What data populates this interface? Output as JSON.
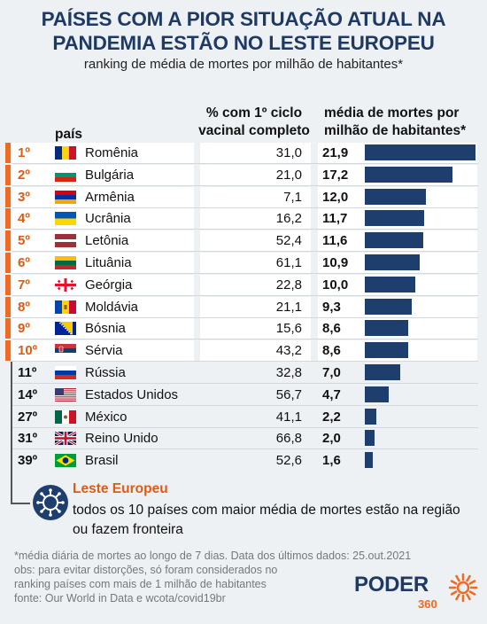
{
  "header": {
    "title_line1": "PAÍSES COM A PIOR SITUAÇÃO ATUAL NA",
    "title_line2": "PANDEMIA ESTÃO NO LESTE EUROPEU",
    "subtitle": "ranking de média de mortes por milhão de habitantes*"
  },
  "columns": {
    "country": "país",
    "pct_line1": "% com 1º ciclo",
    "pct_line2": "vacinal completo",
    "deaths_line1": "média de mortes por",
    "deaths_line2": "milhão de habitantes*"
  },
  "chart_data": {
    "type": "bar",
    "orientation": "horizontal",
    "title": "PAÍSES COM A PIOR SITUAÇÃO ATUAL NA PANDEMIA ESTÃO NO LESTE EUROPEU",
    "subtitle": "ranking de média de mortes por milhão de habitantes*",
    "xlim": [
      0,
      22
    ],
    "rows": [
      {
        "rank": "1º",
        "country": "Romênia",
        "flag": "romania-flag",
        "vaccinated_pct": "31,0",
        "deaths": 21.9,
        "deaths_label": "21,9",
        "eastern_europe": true
      },
      {
        "rank": "2º",
        "country": "Bulgária",
        "flag": "bulgaria-flag",
        "vaccinated_pct": "21,0",
        "deaths": 17.2,
        "deaths_label": "17,2",
        "eastern_europe": true
      },
      {
        "rank": "3º",
        "country": "Armênia",
        "flag": "armenia-flag",
        "vaccinated_pct": "7,1",
        "deaths": 12.0,
        "deaths_label": "12,0",
        "eastern_europe": true
      },
      {
        "rank": "4º",
        "country": "Ucrânia",
        "flag": "ukraine-flag",
        "vaccinated_pct": "16,2",
        "deaths": 11.7,
        "deaths_label": "11,7",
        "eastern_europe": true
      },
      {
        "rank": "5º",
        "country": "Letônia",
        "flag": "latvia-flag",
        "vaccinated_pct": "52,4",
        "deaths": 11.6,
        "deaths_label": "11,6",
        "eastern_europe": true
      },
      {
        "rank": "6º",
        "country": "Lituânia",
        "flag": "lithuania-flag",
        "vaccinated_pct": "61,1",
        "deaths": 10.9,
        "deaths_label": "10,9",
        "eastern_europe": true
      },
      {
        "rank": "7º",
        "country": "Geórgia",
        "flag": "georgia-flag",
        "vaccinated_pct": "22,8",
        "deaths": 10.0,
        "deaths_label": "10,0",
        "eastern_europe": true
      },
      {
        "rank": "8º",
        "country": "Moldávia",
        "flag": "moldova-flag",
        "vaccinated_pct": "21,1",
        "deaths": 9.3,
        "deaths_label": "9,3",
        "eastern_europe": true
      },
      {
        "rank": "9º",
        "country": "Bósnia",
        "flag": "bosnia-flag",
        "vaccinated_pct": "15,6",
        "deaths": 8.6,
        "deaths_label": "8,6",
        "eastern_europe": true
      },
      {
        "rank": "10º",
        "country": "Sérvia",
        "flag": "serbia-flag",
        "vaccinated_pct": "43,2",
        "deaths": 8.6,
        "deaths_label": "8,6",
        "eastern_europe": true
      },
      {
        "rank": "11º",
        "country": "Rússia",
        "flag": "russia-flag",
        "vaccinated_pct": "32,8",
        "deaths": 7.0,
        "deaths_label": "7,0",
        "eastern_europe": false
      },
      {
        "rank": "14º",
        "country": "Estados Unidos",
        "flag": "usa-flag",
        "vaccinated_pct": "56,7",
        "deaths": 4.7,
        "deaths_label": "4,7",
        "eastern_europe": false
      },
      {
        "rank": "27º",
        "country": "México",
        "flag": "mexico-flag",
        "vaccinated_pct": "41,1",
        "deaths": 2.2,
        "deaths_label": "2,2",
        "eastern_europe": false
      },
      {
        "rank": "31º",
        "country": "Reino Unido",
        "flag": "uk-flag",
        "vaccinated_pct": "66,8",
        "deaths": 2.0,
        "deaths_label": "2,0",
        "eastern_europe": false
      },
      {
        "rank": "39º",
        "country": "Brasil",
        "flag": "brazil-flag",
        "vaccinated_pct": "52,6",
        "deaths": 1.6,
        "deaths_label": "1,6",
        "eastern_europe": false
      }
    ]
  },
  "annotation": {
    "title": "Leste Europeu",
    "text": "todos os 10 países com maior média de mortes estão na região ou fazem fronteira",
    "icon": "virus-icon"
  },
  "footnotes": {
    "line1": "*média diária de mortes ao longo de 7 dias. Data dos últimos dados: 25.out.2021",
    "line2": "obs: para evitar distorções, só foram considerados no",
    "line3": "ranking países com mais de 1 milhão de habitantes",
    "line4": "fonte: Our World in Data e wcota/covid19br"
  },
  "logo": {
    "name": "PODER",
    "number": "360"
  },
  "colors": {
    "title": "#1e3a64",
    "accent": "#f06a21",
    "bar": "#1e3f6e"
  }
}
